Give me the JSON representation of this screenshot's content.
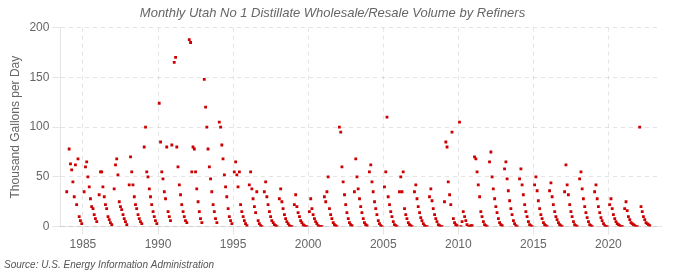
{
  "chart_data": {
    "type": "scatter",
    "title": "Monthly Utah No 1 Distillate Wholesale/Resale Volume by Refiners",
    "ylabel": "Thousand Gallons per Day",
    "annotation": "Source: U.S. Energy Information Administration",
    "color": "#cc0000",
    "marker": "square",
    "grid": true,
    "xlim": [
      1983.5,
      2023.5
    ],
    "ylim": [
      0,
      200
    ],
    "xticks": [
      1985,
      1990,
      1995,
      2000,
      2005,
      2010,
      2015,
      2020
    ],
    "yticks": [
      0,
      50,
      100,
      150,
      200
    ],
    "x": [
      1983.92,
      1984.08,
      1984.17,
      1984.25,
      1984.33,
      1984.42,
      1984.5,
      1984.58,
      1984.67,
      1984.75,
      1984.83,
      1984.92,
      1985.08,
      1985.17,
      1985.25,
      1985.33,
      1985.42,
      1985.5,
      1985.58,
      1985.67,
      1985.75,
      1985.83,
      1985.92,
      1986.08,
      1986.17,
      1986.25,
      1986.33,
      1986.42,
      1986.5,
      1986.58,
      1986.67,
      1986.75,
      1986.83,
      1986.92,
      1987.08,
      1987.17,
      1987.25,
      1987.33,
      1987.42,
      1987.5,
      1987.58,
      1987.67,
      1987.75,
      1987.83,
      1987.92,
      1988.08,
      1988.17,
      1988.25,
      1988.33,
      1988.42,
      1988.5,
      1988.58,
      1988.67,
      1988.75,
      1988.83,
      1988.92,
      1989.08,
      1989.17,
      1989.25,
      1989.33,
      1989.42,
      1989.5,
      1989.58,
      1989.67,
      1989.75,
      1989.83,
      1989.92,
      1990.08,
      1990.17,
      1990.25,
      1990.33,
      1990.42,
      1990.5,
      1990.58,
      1990.67,
      1990.75,
      1990.83,
      1990.92,
      1991.08,
      1991.17,
      1991.25,
      1991.33,
      1991.42,
      1991.5,
      1991.58,
      1991.67,
      1991.75,
      1991.83,
      1991.92,
      1992.08,
      1992.17,
      1992.25,
      1992.33,
      1992.42,
      1992.5,
      1992.58,
      1992.67,
      1992.75,
      1992.83,
      1992.92,
      1993.08,
      1993.17,
      1993.25,
      1993.33,
      1993.42,
      1993.5,
      1993.58,
      1993.67,
      1993.75,
      1993.83,
      1993.92,
      1994.08,
      1994.17,
      1994.25,
      1994.33,
      1994.42,
      1994.5,
      1994.58,
      1994.67,
      1994.75,
      1994.83,
      1994.92,
      1995.08,
      1995.17,
      1995.25,
      1995.33,
      1995.42,
      1995.5,
      1995.58,
      1995.67,
      1995.75,
      1995.83,
      1995.92,
      1996.08,
      1996.17,
      1996.25,
      1996.33,
      1996.42,
      1996.5,
      1996.58,
      1996.67,
      1996.75,
      1996.83,
      1996.92,
      1997.08,
      1997.17,
      1997.25,
      1997.33,
      1997.42,
      1997.5,
      1997.58,
      1997.67,
      1997.75,
      1997.83,
      1997.92,
      1998.08,
      1998.17,
      1998.25,
      1998.33,
      1998.42,
      1998.5,
      1998.58,
      1998.67,
      1998.75,
      1998.83,
      1998.92,
      1999.08,
      1999.17,
      1999.25,
      1999.33,
      1999.42,
      1999.5,
      1999.58,
      1999.67,
      1999.75,
      1999.83,
      1999.92,
      2000.08,
      2000.17,
      2000.25,
      2000.33,
      2000.42,
      2000.5,
      2000.58,
      2000.67,
      2000.75,
      2000.83,
      2000.92,
      2001.08,
      2001.17,
      2001.25,
      2001.33,
      2001.42,
      2001.5,
      2001.58,
      2001.67,
      2001.75,
      2001.83,
      2001.92,
      2002.08,
      2002.17,
      2002.25,
      2002.33,
      2002.42,
      2002.5,
      2002.58,
      2002.67,
      2002.75,
      2002.83,
      2002.92,
      2003.08,
      2003.17,
      2003.25,
      2003.33,
      2003.42,
      2003.5,
      2003.58,
      2003.67,
      2003.75,
      2003.83,
      2003.92,
      2004.08,
      2004.17,
      2004.25,
      2004.33,
      2004.42,
      2004.5,
      2004.58,
      2004.67,
      2004.75,
      2004.83,
      2004.92,
      2005.08,
      2005.17,
      2005.25,
      2005.33,
      2005.42,
      2005.5,
      2005.58,
      2005.67,
      2005.75,
      2005.83,
      2005.92,
      2006.08,
      2006.17,
      2006.25,
      2006.33,
      2006.42,
      2006.5,
      2006.58,
      2006.67,
      2006.75,
      2006.83,
      2006.92,
      2007.08,
      2007.17,
      2007.25,
      2007.33,
      2007.42,
      2007.5,
      2007.58,
      2007.67,
      2007.75,
      2007.83,
      2007.92,
      2008.08,
      2008.17,
      2008.25,
      2008.33,
      2008.42,
      2008.5,
      2008.58,
      2008.67,
      2008.75,
      2008.83,
      2008.92,
      2009.08,
      2009.17,
      2009.25,
      2009.33,
      2009.42,
      2009.5,
      2009.58,
      2009.67,
      2009.75,
      2009.83,
      2009.92,
      2010.08,
      2010.17,
      2010.25,
      2010.33,
      2010.42,
      2010.5,
      2010.58,
      2010.67,
      2010.75,
      2010.83,
      2010.92,
      2011.08,
      2011.17,
      2011.25,
      2011.33,
      2011.42,
      2011.5,
      2011.58,
      2011.67,
      2011.75,
      2011.83,
      2011.92,
      2012.08,
      2012.17,
      2012.25,
      2012.33,
      2012.42,
      2012.5,
      2012.58,
      2012.67,
      2012.75,
      2012.83,
      2012.92,
      2013.08,
      2013.17,
      2013.25,
      2013.33,
      2013.42,
      2013.5,
      2013.58,
      2013.67,
      2013.75,
      2013.83,
      2013.92,
      2014.08,
      2014.17,
      2014.25,
      2014.33,
      2014.42,
      2014.5,
      2014.58,
      2014.67,
      2014.75,
      2014.83,
      2014.92,
      2015.08,
      2015.17,
      2015.25,
      2015.33,
      2015.42,
      2015.5,
      2015.58,
      2015.67,
      2015.75,
      2015.83,
      2015.92,
      2016.08,
      2016.17,
      2016.25,
      2016.33,
      2016.42,
      2016.5,
      2016.58,
      2016.67,
      2016.75,
      2016.83,
      2016.92,
      2017.08,
      2017.17,
      2017.25,
      2017.33,
      2017.42,
      2017.5,
      2017.58,
      2017.67,
      2017.75,
      2017.83,
      2017.92,
      2018.08,
      2018.17,
      2018.25,
      2018.33,
      2018.42,
      2018.5,
      2018.58,
      2018.67,
      2018.75,
      2018.83,
      2018.92,
      2019.08,
      2019.17,
      2019.25,
      2019.33,
      2019.42,
      2019.5,
      2019.58,
      2019.67,
      2019.75,
      2019.83,
      2019.92,
      2020.08,
      2020.17,
      2020.25,
      2020.33,
      2020.42,
      2020.5,
      2020.58,
      2020.67,
      2020.75,
      2020.83,
      2020.92,
      2021.08,
      2021.17,
      2021.25,
      2021.33,
      2021.42,
      2021.5,
      2021.58,
      2021.67,
      2021.75,
      2021.83,
      2021.92,
      2022.08,
      2022.17,
      2022.25,
      2022.33,
      2022.42,
      2022.5,
      2022.58,
      2022.67,
      2022.75
    ],
    "values": [
      35,
      78,
      63,
      57,
      45,
      30,
      62,
      22,
      68,
      10,
      6,
      3,
      35,
      60,
      65,
      50,
      40,
      28,
      20,
      18,
      12,
      8,
      5,
      32,
      55,
      55,
      40,
      30,
      22,
      18,
      10,
      7,
      4,
      2,
      38,
      62,
      68,
      52,
      25,
      20,
      17,
      12,
      8,
      5,
      2,
      42,
      70,
      55,
      42,
      30,
      22,
      18,
      12,
      8,
      5,
      3,
      80,
      100,
      55,
      50,
      38,
      30,
      22,
      15,
      10,
      6,
      3,
      124,
      85,
      55,
      48,
      35,
      28,
      80,
      15,
      10,
      6,
      82,
      165,
      170,
      80,
      60,
      42,
      32,
      22,
      15,
      10,
      6,
      4,
      188,
      185,
      55,
      80,
      78,
      55,
      38,
      25,
      15,
      8,
      4,
      148,
      120,
      100,
      78,
      60,
      48,
      35,
      22,
      15,
      8,
      4,
      105,
      100,
      82,
      68,
      52,
      40,
      30,
      18,
      10,
      6,
      3,
      55,
      65,
      52,
      40,
      55,
      22,
      15,
      10,
      6,
      3,
      1,
      42,
      55,
      38,
      28,
      20,
      14,
      35,
      6,
      3,
      1,
      0,
      35,
      45,
      30,
      22,
      15,
      10,
      6,
      4,
      2,
      1,
      0,
      28,
      38,
      25,
      18,
      12,
      8,
      5,
      3,
      1,
      0,
      0,
      22,
      32,
      20,
      14,
      10,
      6,
      4,
      2,
      1,
      0,
      0,
      15,
      28,
      18,
      12,
      8,
      5,
      3,
      1,
      0,
      0,
      0,
      30,
      25,
      35,
      50,
      18,
      12,
      8,
      4,
      2,
      1,
      0,
      100,
      95,
      60,
      45,
      32,
      22,
      14,
      8,
      4,
      2,
      1,
      35,
      68,
      50,
      38,
      28,
      20,
      14,
      8,
      4,
      2,
      1,
      55,
      62,
      45,
      35,
      25,
      18,
      12,
      6,
      3,
      1,
      0,
      40,
      55,
      110,
      30,
      22,
      15,
      10,
      5,
      2,
      1,
      0,
      35,
      50,
      35,
      55,
      18,
      12,
      8,
      4,
      2,
      1,
      0,
      35,
      42,
      28,
      20,
      14,
      9,
      6,
      3,
      1,
      0,
      0,
      30,
      38,
      26,
      18,
      12,
      8,
      5,
      2,
      1,
      0,
      0,
      25,
      85,
      80,
      45,
      32,
      22,
      95,
      8,
      4,
      2,
      1,
      105,
      0,
      5,
      15,
      10,
      6,
      2,
      0,
      0,
      1,
      1,
      70,
      68,
      55,
      42,
      30,
      15,
      10,
      5,
      2,
      1,
      0,
      65,
      75,
      50,
      38,
      28,
      20,
      14,
      8,
      4,
      2,
      1,
      58,
      65,
      48,
      36,
      26,
      18,
      12,
      6,
      3,
      1,
      0,
      48,
      58,
      42,
      32,
      22,
      15,
      10,
      5,
      2,
      1,
      0,
      42,
      50,
      36,
      26,
      18,
      12,
      8,
      4,
      2,
      1,
      0,
      36,
      44,
      30,
      22,
      15,
      10,
      7,
      4,
      2,
      1,
      0,
      35,
      62,
      42,
      32,
      22,
      15,
      10,
      5,
      2,
      1,
      0,
      48,
      55,
      38,
      28,
      20,
      14,
      9,
      5,
      2,
      1,
      0,
      35,
      42,
      28,
      20,
      14,
      9,
      6,
      3,
      1,
      0,
      0,
      22,
      28,
      18,
      12,
      8,
      5,
      3,
      2,
      1,
      0,
      0,
      18,
      25,
      16,
      10,
      7,
      4,
      3,
      2,
      1,
      0,
      0,
      100,
      20,
      15,
      10,
      7,
      4,
      3,
      2,
      1
    ]
  }
}
